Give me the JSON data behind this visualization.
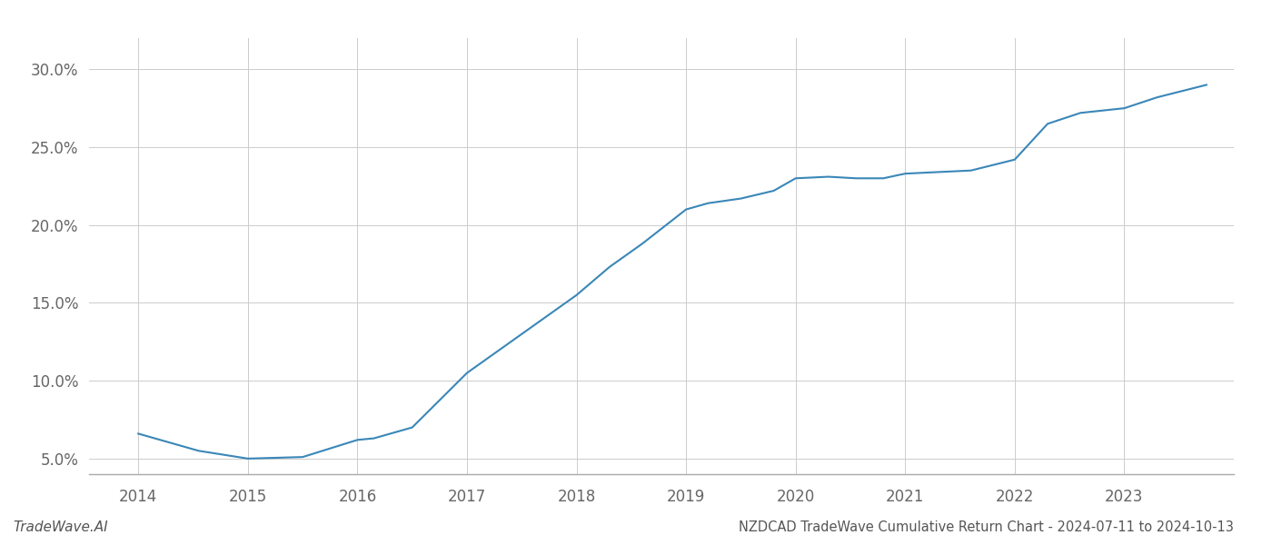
{
  "x_values": [
    2014.0,
    2014.55,
    2015.0,
    2015.5,
    2016.0,
    2016.15,
    2016.5,
    2017.0,
    2017.5,
    2018.0,
    2018.3,
    2018.6,
    2019.0,
    2019.2,
    2019.5,
    2019.8,
    2020.0,
    2020.3,
    2020.55,
    2020.8,
    2021.0,
    2021.3,
    2021.6,
    2022.0,
    2022.3,
    2022.6,
    2023.0,
    2023.3,
    2023.75
  ],
  "y_values": [
    6.6,
    5.5,
    5.0,
    5.1,
    6.2,
    6.3,
    7.0,
    10.5,
    13.0,
    15.5,
    17.3,
    18.8,
    21.0,
    21.4,
    21.7,
    22.2,
    23.0,
    23.1,
    23.0,
    23.0,
    23.3,
    23.4,
    23.5,
    24.2,
    26.5,
    27.2,
    27.5,
    28.2,
    29.0
  ],
  "line_color": "#3a87b8",
  "line_width": 1.5,
  "background_color": "#ffffff",
  "grid_color": "#cccccc",
  "title": "NZDCAD TradeWave Cumulative Return Chart - 2024-07-11 to 2024-10-13",
  "xlabel": "",
  "ylabel": "",
  "ylim": [
    4.0,
    32.0
  ],
  "yticks": [
    5.0,
    10.0,
    15.0,
    20.0,
    25.0,
    30.0
  ],
  "ytick_labels": [
    "5.0%",
    "10.0%",
    "15.0%",
    "20.0%",
    "25.0%",
    "30.0%"
  ],
  "xticks": [
    2014,
    2015,
    2016,
    2017,
    2018,
    2019,
    2020,
    2021,
    2022,
    2023
  ],
  "xtick_labels": [
    "2014",
    "2015",
    "2016",
    "2017",
    "2018",
    "2019",
    "2020",
    "2021",
    "2022",
    "2023"
  ],
  "xlim": [
    2013.55,
    2024.0
  ],
  "watermark_left": "TradeWave.AI",
  "title_fontsize": 10.5,
  "tick_fontsize": 12,
  "watermark_fontsize": 11
}
